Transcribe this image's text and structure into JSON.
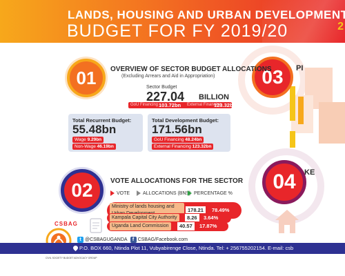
{
  "header": {
    "title_line1": "LANDS, HOUSING AND URBAN DEVELOPMENT",
    "title_line2": "BUDGET FOR FY 2019/20",
    "corner_number": "2"
  },
  "section1": {
    "number": "01",
    "title": "OVERVIEW OF SECTOR BUDGET ALLOCATIONS",
    "subtitle": "(Excluding Arrears and Aid in Appropriation)",
    "sector_budget_label": "Sector Budget",
    "sector_budget_value": "227.04",
    "sector_budget_unit": "BILLION",
    "gou_label": "GoU Financing",
    "gou_value": "103.72bn",
    "external_label": "External Financing",
    "external_value": "123.32bn",
    "recurrent": {
      "title": "Total Recurrent Budget:",
      "value": "55.48bn",
      "wage_label": "Wage",
      "wage_value": "9.29bn",
      "nonwage_label": "Non-Wage",
      "nonwage_value": "46.19bn"
    },
    "development": {
      "title": "Total Development Budget:",
      "value": "171.56bn",
      "gou_label": "GoU Financing",
      "gou_value": "48.24bn",
      "external_label": "External Financing",
      "external_value": "123.32bn"
    }
  },
  "section2": {
    "number": "02",
    "title": "VOTE ALLOCATIONS FOR THE SECTOR",
    "legend": {
      "vote": "VOTE",
      "allocations": "ALLOCATIONS (BNS)",
      "percentage": "PERCENTAGE %"
    },
    "votes": [
      {
        "name": "Ministry of lands housing and Urban Development",
        "allocation": "178.21",
        "percentage": "78.49%"
      },
      {
        "name": "Kampala Capital City Authority",
        "allocation": "8.26",
        "percentage": "3.64%"
      },
      {
        "name": "Uganda Land Commission",
        "allocation": "40.57",
        "percentage": "17.87%"
      }
    ]
  },
  "section3": {
    "number": "03",
    "title_partial": "PI"
  },
  "section4": {
    "number": "04",
    "title_partial": "KE"
  },
  "logo": {
    "name": "CSBAG",
    "tagline": "CIVIL SOCIETY BUDGET ADVOCACY GROUP"
  },
  "social": {
    "twitter": "@CSBAGUGANDA",
    "facebook": "CSBAG/Facebook.com"
  },
  "footer": {
    "address": "P.O. BOX 660, Ntinda Plot 11, Vubyabirenge Close, Ntinda. Tel: + 256755202154. E-mail: csb"
  },
  "colors": {
    "orange": "#f37021",
    "red": "#e8262a",
    "yellow": "#f7a81b",
    "navy": "#2e3192"
  }
}
